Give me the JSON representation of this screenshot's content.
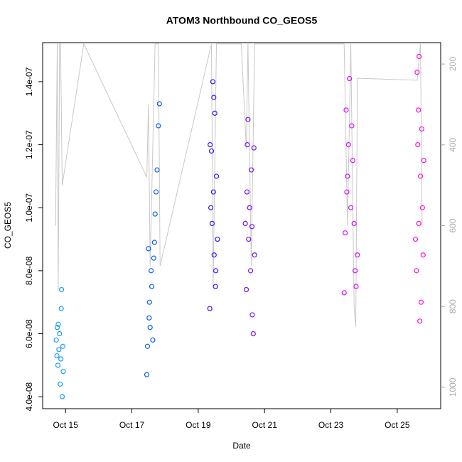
{
  "chart_data": {
    "type": "scatter",
    "title": "ATOM3 Northbound CO_GEOS5",
    "x_label": "Date",
    "y_label": "CO_GEOS5",
    "xlim": [
      14.31,
      26.31
    ],
    "xticks": [
      {
        "value": 15,
        "label": "Oct 15"
      },
      {
        "value": 17,
        "label": "Oct 17"
      },
      {
        "value": 19,
        "label": "Oct 19"
      },
      {
        "value": 21,
        "label": "Oct 21"
      },
      {
        "value": 23,
        "label": "Oct 23"
      },
      {
        "value": 25,
        "label": "Oct 25"
      }
    ],
    "ylim": [
      3.62e-08,
      1.524e-07
    ],
    "yticks": [
      {
        "value": 4e-08,
        "label": "4.0e-08"
      },
      {
        "value": 6e-08,
        "label": "6.0e-08"
      },
      {
        "value": 8e-08,
        "label": "8.0e-08"
      },
      {
        "value": 1e-07,
        "label": "1.0e-07"
      },
      {
        "value": 1.2e-07,
        "label": "1.2e-07"
      },
      {
        "value": 1.4e-07,
        "label": "1.4e-07"
      }
    ],
    "y2lim": [
      1053,
      147
    ],
    "y2ticks": [
      200,
      400,
      600,
      800,
      1000
    ],
    "series": [
      {
        "color": "#1a9bff",
        "x": [
          14.72,
          14.75,
          14.77,
          14.8,
          14.82,
          14.84,
          14.86,
          14.88,
          14.9,
          14.92,
          14.78,
          14.87,
          14.93,
          14.74
        ],
        "values": [
          5.8e-08,
          6.2e-08,
          5e-08,
          5.5e-08,
          6e-08,
          4.4e-08,
          5.2e-08,
          7.4e-08,
          4e-08,
          5.6e-08,
          6.3e-08,
          6.8e-08,
          4.8e-08,
          5.3e-08
        ]
      },
      {
        "color": "#0a5bff",
        "x": [
          17.45,
          17.47,
          17.5,
          17.53,
          17.55,
          17.58,
          17.6,
          17.63,
          17.66,
          17.7,
          17.73,
          17.76,
          17.8,
          17.83,
          17.52,
          17.68
        ],
        "values": [
          4.7e-08,
          5.6e-08,
          8.7e-08,
          7e-08,
          6.2e-08,
          8e-08,
          7.5e-08,
          5.8e-08,
          8.4e-08,
          9.8e-08,
          1.05e-07,
          1.12e-07,
          1.26e-07,
          1.33e-07,
          6.5e-08,
          8.9e-08
        ]
      },
      {
        "color": "#2a1aff",
        "x": [
          19.35,
          19.38,
          19.4,
          19.42,
          19.44,
          19.46,
          19.48,
          19.5,
          19.52,
          19.55,
          19.58,
          19.36,
          19.47,
          19.53
        ],
        "values": [
          6.8e-08,
          1e-07,
          1.18e-07,
          9.5e-08,
          1.4e-07,
          1.05e-07,
          8.5e-08,
          1.3e-07,
          7.5e-08,
          1.1e-07,
          9e-08,
          1.2e-07,
          1.35e-07,
          8e-08
        ]
      },
      {
        "color": "#7a10ff",
        "x": [
          20.42,
          20.45,
          20.48,
          20.5,
          20.52,
          20.55,
          20.58,
          20.6,
          20.63,
          20.66,
          20.68,
          20.7,
          20.47,
          20.62
        ],
        "values": [
          9.5e-08,
          7.4e-08,
          1.2e-07,
          1.28e-07,
          9e-08,
          1e-07,
          8e-08,
          1.12e-07,
          6.6e-08,
          6e-08,
          1.19e-07,
          8.5e-08,
          1.05e-07,
          9.4e-08
        ]
      },
      {
        "color": "#d010ff",
        "x": [
          23.4,
          23.43,
          23.46,
          23.5,
          23.53,
          23.56,
          23.6,
          23.63,
          23.66,
          23.7,
          23.73,
          23.76,
          23.8,
          23.48
        ],
        "values": [
          7.3e-08,
          9.2e-08,
          1.31e-07,
          1.1e-07,
          1.2e-07,
          1.41e-07,
          1e-07,
          1.26e-07,
          1.15e-07,
          9.5e-08,
          8e-08,
          7.5e-08,
          8.5e-08,
          1.05e-07
        ]
      },
      {
        "color": "#ff10d0",
        "x": [
          25.55,
          25.58,
          25.6,
          25.62,
          25.64,
          25.66,
          25.68,
          25.7,
          25.72,
          25.74,
          25.76,
          25.78,
          25.8,
          25.65
        ],
        "values": [
          9e-08,
          8e-08,
          1.43e-07,
          1.2e-07,
          1.31e-07,
          1.48e-07,
          6.4e-08,
          1.1e-07,
          7e-08,
          1.25e-07,
          1e-07,
          8.5e-08,
          1.15e-07,
          9.5e-08
        ]
      },
      {
        "color": "#c8c8c8",
        "axis": "y2",
        "line": true,
        "x": [
          14.7,
          14.75,
          14.78,
          14.82,
          14.85,
          14.9,
          15.55,
          17.45,
          17.5,
          17.55,
          17.7,
          17.8,
          17.85,
          19.4,
          19.45,
          19.55,
          19.6,
          20.3,
          20.45,
          20.5,
          20.6,
          20.7,
          23.4,
          23.5,
          23.6,
          23.7,
          23.75,
          23.8,
          25.6,
          25.7,
          25.75
        ],
        "values": [
          600,
          150,
          760,
          150,
          150,
          500,
          150,
          480,
          300,
          700,
          150,
          150,
          700,
          150,
          750,
          150,
          150,
          150,
          410,
          150,
          700,
          150,
          150,
          600,
          150,
          800,
          850,
          235,
          240,
          150,
          600
        ]
      }
    ]
  }
}
